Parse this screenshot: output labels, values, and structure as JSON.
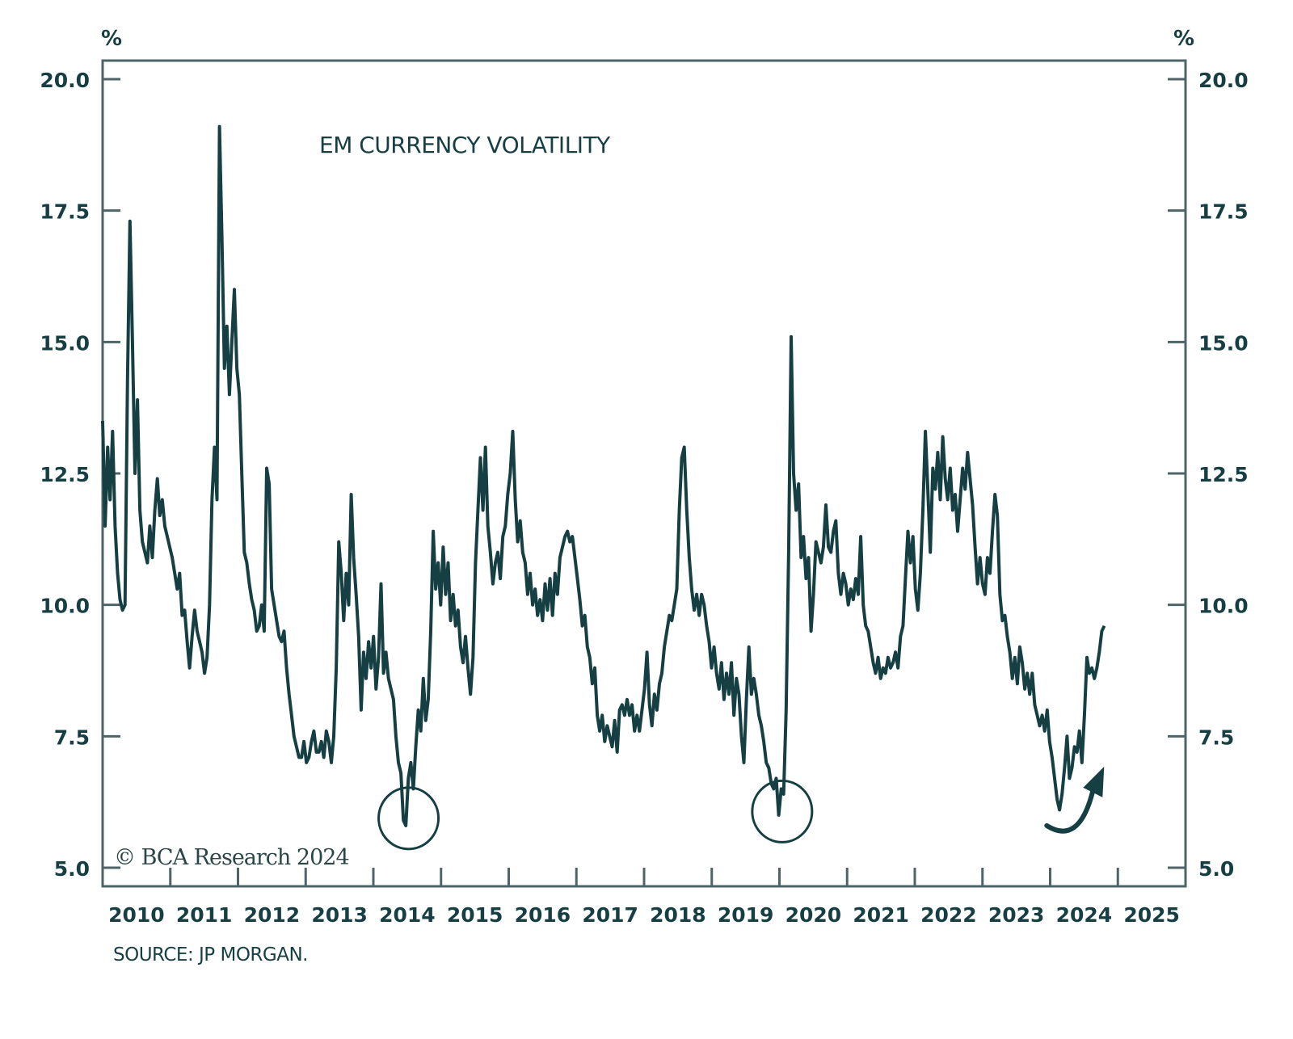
{
  "chart_data": {
    "type": "line",
    "title": "EM CURRENCY VOLATILITY",
    "y_unit_left": "%",
    "y_unit_right": "%",
    "ylim": [
      5.0,
      20.0
    ],
    "yticks": [
      "5.0",
      "7.5",
      "10.0",
      "12.5",
      "15.0",
      "17.5",
      "20.0"
    ],
    "xlim": [
      2010,
      2026
    ],
    "xticks": [
      "2010",
      "2011",
      "2012",
      "2013",
      "2014",
      "2015",
      "2016",
      "2017",
      "2018",
      "2019",
      "2020",
      "2021",
      "2022",
      "2023",
      "2024",
      "2025"
    ],
    "source": "SOURCE: JP MORGAN.",
    "watermark": "© BCA Research 2024",
    "color": "#153f42",
    "series": [
      {
        "name": "EM currency volatility",
        "x_start": 2010.0,
        "x_end": 2024.8,
        "values": [
          13.5,
          11.5,
          13.0,
          12.0,
          13.3,
          11.5,
          10.6,
          10.1,
          9.9,
          10.0,
          14.3,
          17.3,
          15.0,
          12.5,
          13.9,
          11.8,
          11.2,
          11.0,
          10.8,
          11.5,
          10.9,
          11.8,
          12.4,
          11.7,
          12.0,
          11.5,
          11.3,
          11.1,
          10.9,
          10.6,
          10.3,
          10.6,
          9.8,
          9.9,
          9.3,
          8.8,
          9.4,
          9.9,
          9.5,
          9.3,
          9.1,
          8.7,
          9.0,
          10.0,
          12.0,
          13.0,
          12.0,
          19.1,
          17.0,
          14.5,
          15.3,
          14.0,
          15.0,
          16.0,
          14.5,
          14.0,
          12.5,
          11.0,
          10.8,
          10.4,
          10.1,
          9.9,
          9.5,
          9.6,
          10.0,
          9.5,
          12.6,
          12.3,
          10.3,
          10.0,
          9.7,
          9.4,
          9.3,
          9.5,
          8.8,
          8.3,
          7.9,
          7.5,
          7.3,
          7.1,
          7.1,
          7.4,
          7.0,
          7.1,
          7.4,
          7.6,
          7.2,
          7.2,
          7.4,
          7.1,
          7.6,
          7.4,
          7.0,
          7.5,
          8.8,
          11.2,
          10.6,
          9.7,
          10.6,
          10.0,
          12.1,
          10.9,
          10.2,
          9.4,
          8.0,
          9.1,
          8.6,
          9.3,
          8.8,
          9.4,
          8.4,
          9.0,
          10.4,
          8.7,
          9.1,
          8.6,
          8.4,
          8.2,
          7.5,
          7.0,
          6.8,
          5.9,
          5.8,
          6.7,
          7.0,
          6.5,
          7.3,
          8.0,
          7.6,
          8.6,
          7.8,
          8.2,
          9.5,
          11.4,
          10.3,
          10.8,
          10.0,
          11.1,
          10.2,
          10.8,
          9.7,
          10.2,
          9.6,
          9.9,
          9.2,
          8.9,
          9.4,
          8.8,
          8.3,
          9.0,
          10.8,
          11.8,
          12.8,
          11.8,
          13.0,
          11.5,
          11.0,
          10.4,
          10.8,
          11.0,
          10.5,
          11.3,
          11.5,
          12.1,
          12.5,
          13.3,
          12.0,
          11.2,
          11.6,
          11.0,
          10.8,
          10.2,
          10.6,
          10.0,
          10.3,
          9.8,
          10.1,
          9.7,
          10.4,
          9.9,
          10.5,
          9.8,
          10.6,
          10.2,
          10.9,
          11.1,
          11.3,
          11.4,
          11.2,
          11.3,
          10.9,
          10.5,
          10.1,
          9.6,
          9.8,
          9.2,
          9.0,
          8.5,
          8.8,
          7.9,
          7.6,
          7.9,
          7.4,
          7.7,
          7.5,
          7.3,
          7.8,
          7.2,
          8.0,
          8.1,
          7.9,
          8.2,
          7.9,
          8.1,
          7.6,
          7.9,
          7.6,
          8.0,
          8.4,
          9.1,
          8.1,
          7.7,
          8.3,
          8.0,
          8.5,
          8.7,
          9.2,
          9.5,
          9.8,
          9.7,
          10.0,
          10.3,
          11.8,
          12.8,
          13.0,
          11.8,
          10.9,
          10.3,
          9.9,
          10.2,
          9.8,
          10.2,
          10.0,
          9.6,
          9.3,
          8.8,
          9.2,
          8.7,
          8.4,
          8.9,
          8.2,
          8.7,
          8.3,
          8.9,
          7.9,
          8.6,
          8.3,
          7.5,
          7.0,
          8.2,
          9.2,
          8.3,
          8.6,
          8.3,
          7.9,
          7.7,
          7.4,
          7.0,
          6.9,
          6.6,
          6.5,
          6.7,
          6.0,
          6.5,
          6.4,
          8.0,
          11.0,
          15.1,
          12.5,
          11.8,
          12.3,
          10.9,
          11.3,
          10.5,
          10.9,
          9.5,
          10.2,
          11.2,
          11.0,
          10.8,
          11.1,
          11.9,
          11.1,
          11.0,
          11.4,
          11.6,
          10.6,
          10.2,
          10.6,
          10.4,
          10.0,
          10.3,
          10.1,
          10.5,
          10.2,
          11.3,
          10.0,
          9.6,
          9.5,
          9.2,
          8.9,
          8.7,
          9.0,
          8.6,
          8.8,
          8.7,
          9.0,
          8.8,
          8.9,
          9.1,
          8.8,
          9.4,
          9.6,
          10.5,
          11.4,
          10.8,
          11.3,
          10.3,
          9.9,
          10.6,
          11.8,
          13.3,
          12.2,
          11.0,
          12.6,
          12.2,
          12.9,
          12.0,
          13.2,
          12.4,
          12.0,
          12.6,
          11.8,
          12.1,
          11.4,
          12.0,
          12.6,
          12.2,
          12.9,
          12.4,
          11.9,
          11.1,
          10.4,
          10.9,
          10.4,
          10.2,
          10.9,
          10.6,
          11.4,
          12.1,
          11.7,
          10.2,
          9.7,
          9.8,
          9.4,
          9.1,
          8.6,
          9.0,
          8.5,
          9.2,
          8.9,
          8.4,
          8.7,
          8.3,
          8.7,
          8.1,
          7.9,
          7.7,
          7.9,
          7.6,
          8.0,
          7.4,
          7.1,
          6.7,
          6.3,
          6.1,
          6.4,
          6.9,
          7.5,
          6.7,
          6.9,
          7.3,
          7.2,
          7.6,
          7.0,
          7.9,
          9.0,
          8.7,
          8.8,
          8.6,
          8.8,
          9.1,
          9.5,
          9.6
        ]
      }
    ],
    "annotations": [
      {
        "type": "circle",
        "x": 2014.52,
        "y": 5.94
      },
      {
        "type": "circle",
        "x": 2020.04,
        "y": 6.07
      },
      {
        "type": "arrow-up",
        "x_from": 2023.95,
        "y_from": 5.8,
        "x_to": 2024.75,
        "y_to": 6.8
      }
    ],
    "grid": false,
    "legend": "none"
  }
}
